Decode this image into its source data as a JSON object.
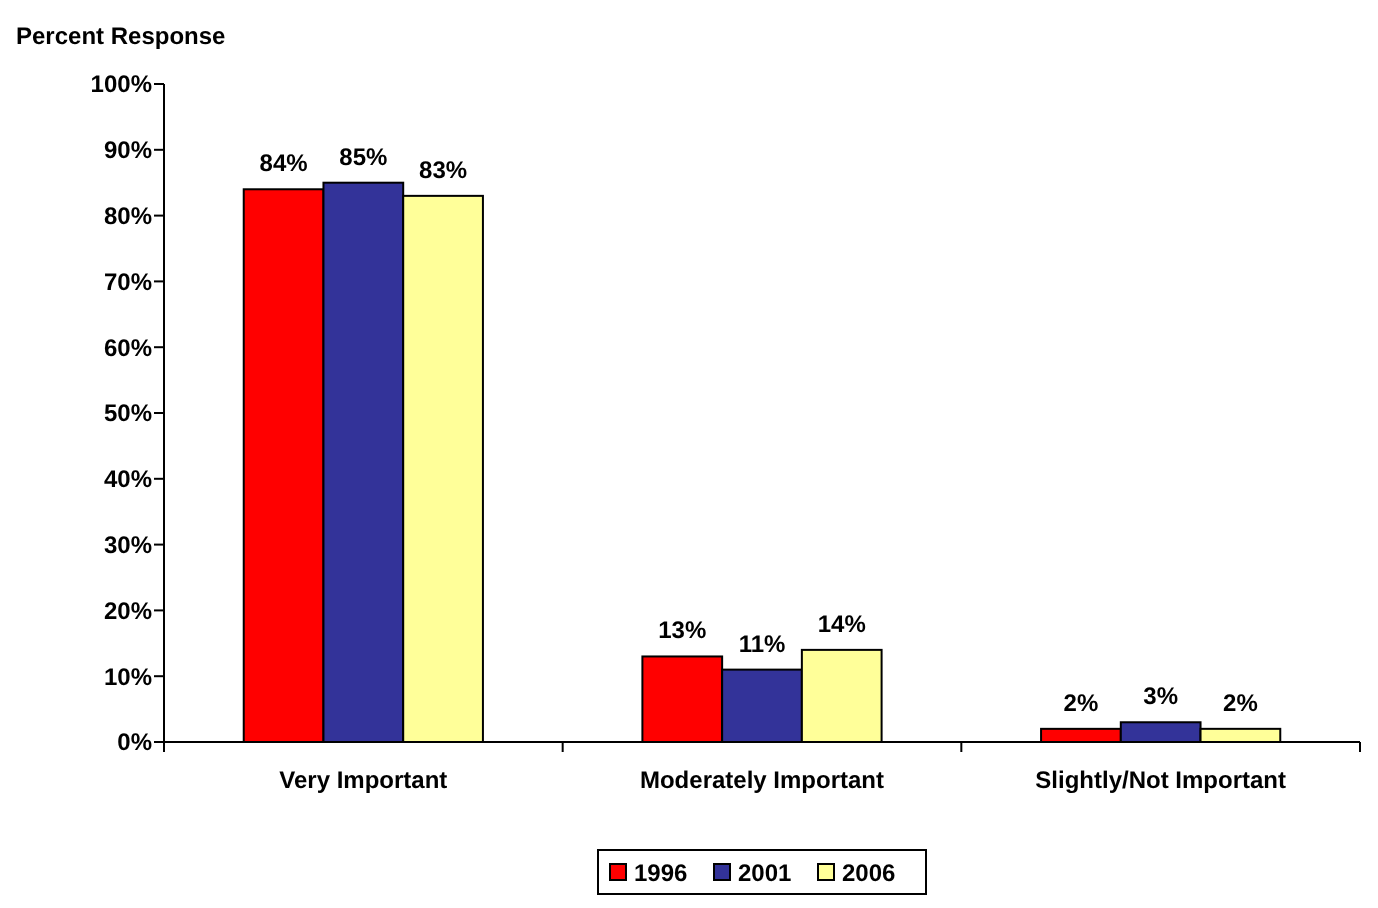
{
  "chart_data": {
    "type": "bar",
    "ylabel": "Percent Response",
    "categories": [
      "Very Important",
      "Moderately Important",
      "Slightly/Not Important"
    ],
    "series": [
      {
        "name": "1996",
        "color": "#ff0000",
        "values": [
          84,
          13,
          2
        ]
      },
      {
        "name": "2001",
        "color": "#333399",
        "values": [
          85,
          11,
          3
        ]
      },
      {
        "name": "2006",
        "color": "#ffff99",
        "values": [
          83,
          14,
          2
        ]
      }
    ],
    "ylim": [
      0,
      100
    ],
    "yticks": [
      {
        "value": 0,
        "label": "0%"
      },
      {
        "value": 10,
        "label": "10%"
      },
      {
        "value": 20,
        "label": "20%"
      },
      {
        "value": 30,
        "label": "30%"
      },
      {
        "value": 40,
        "label": "40%"
      },
      {
        "value": 50,
        "label": "50%"
      },
      {
        "value": 60,
        "label": "60%"
      },
      {
        "value": 70,
        "label": "70%"
      },
      {
        "value": 80,
        "label": "80%"
      },
      {
        "value": 90,
        "label": "90%"
      },
      {
        "value": 100,
        "label": "100%"
      }
    ],
    "value_labels": [
      [
        "84%",
        "13%",
        "2%"
      ],
      [
        "85%",
        "11%",
        "3%"
      ],
      [
        "83%",
        "14%",
        "2%"
      ]
    ],
    "grid": false,
    "legend": "bottom"
  }
}
